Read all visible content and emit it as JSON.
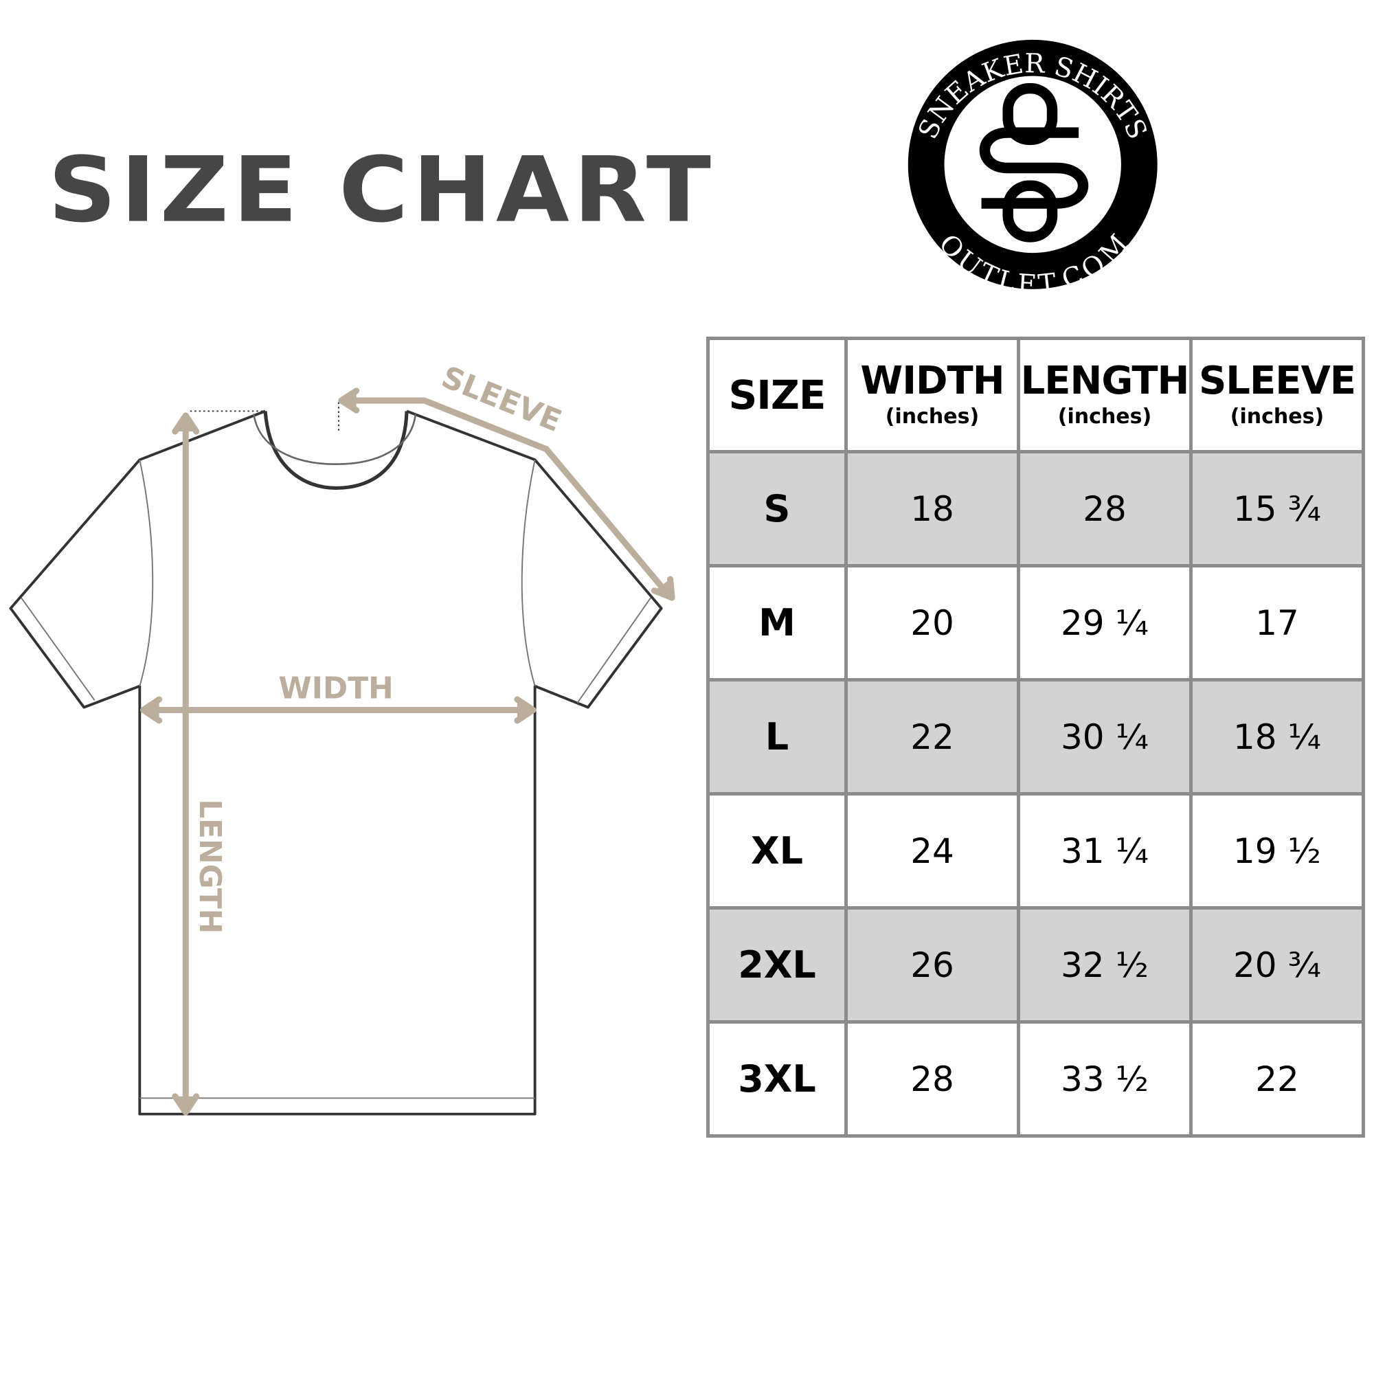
{
  "title": "SIZE CHART",
  "logo": {
    "top_text": "SNEAKER SHIRTS",
    "bottom_text": "OUTLET.COM",
    "monogram": "SO"
  },
  "diagram": {
    "sleeve_label": "SLEEVE",
    "width_label": "WIDTH",
    "length_label": "LENGTH",
    "arrow_color": "#bcae9c",
    "outline_color": "#333333"
  },
  "table": {
    "headers": [
      {
        "label": "SIZE",
        "unit": ""
      },
      {
        "label": "WIDTH",
        "unit": "(inches)"
      },
      {
        "label": "LENGTH",
        "unit": "(inches)"
      },
      {
        "label": "SLEEVE",
        "unit": "(inches)"
      }
    ],
    "rows": [
      [
        "S",
        "18",
        "28",
        "15 ¾"
      ],
      [
        "M",
        "20",
        "29 ¼",
        "17"
      ],
      [
        "L",
        "22",
        "30 ¼",
        "18 ¼"
      ],
      [
        "XL",
        "24",
        "31 ¼",
        "19 ½"
      ],
      [
        "2XL",
        "26",
        "32 ½",
        "20 ¾"
      ],
      [
        "3XL",
        "28",
        "33 ½",
        "22"
      ]
    ],
    "shade_color": "#d3d3d3",
    "border_color": "#8c8c8c"
  }
}
